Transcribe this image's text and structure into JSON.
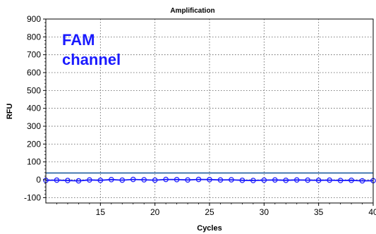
{
  "chart_data": {
    "type": "line",
    "title": "Amplification",
    "xlabel": "Cycles",
    "ylabel": "RFU",
    "xlim": [
      10,
      40
    ],
    "ylim": [
      -130,
      900
    ],
    "x_ticks": [
      15,
      20,
      25,
      30,
      35,
      40
    ],
    "y_ticks": [
      -100,
      0,
      100,
      200,
      300,
      400,
      500,
      600,
      700,
      800,
      900
    ],
    "grid": true,
    "annotation": "FAM channel",
    "threshold": 38,
    "colors": {
      "series": "#1a1aff",
      "threshold": "#1f5fa0",
      "annotation": "#1a1aff"
    },
    "series": [
      {
        "x": [
          10,
          11,
          12,
          13,
          14,
          15,
          16,
          17,
          18,
          19,
          20,
          21,
          22,
          23,
          24,
          25,
          26,
          27,
          28,
          29,
          30,
          31,
          32,
          33,
          34,
          35,
          36,
          37,
          38,
          39,
          40
        ],
        "values": [
          -3,
          -2,
          -4,
          -6,
          -1,
          -3,
          1,
          -2,
          2,
          0,
          -2,
          2,
          1,
          -1,
          2,
          1,
          -1,
          0,
          -3,
          -4,
          -2,
          -1,
          -3,
          -1,
          -2,
          -3,
          -2,
          -4,
          -3,
          -6,
          -5
        ]
      }
    ]
  }
}
